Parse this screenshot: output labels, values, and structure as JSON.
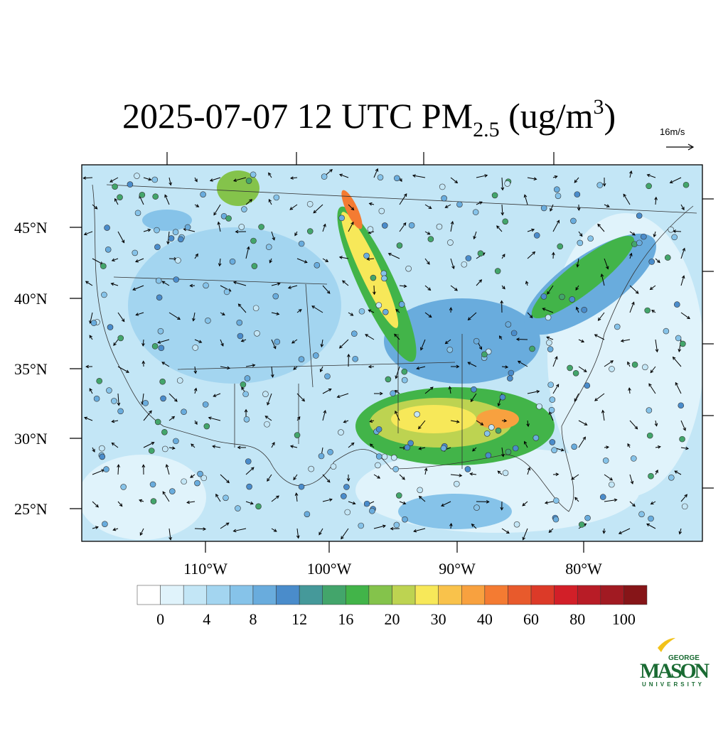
{
  "title": {
    "main": "2025-07-07 12 UTC PM",
    "sub": "2.5",
    "units": " (ug/m",
    "sup": "3",
    "close": ")"
  },
  "wind_reference": "16m/s",
  "latitude_labels": [
    "45°N",
    "40°N",
    "35°N",
    "30°N",
    "25°N"
  ],
  "longitude_labels": [
    "110°W",
    "100°W",
    "90°W",
    "80°W"
  ],
  "colorbar": {
    "colors": [
      "#ffffff",
      "#e0f3fb",
      "#c3e6f6",
      "#a3d5f0",
      "#86c3e9",
      "#69acdd",
      "#4a8ccb",
      "#45999a",
      "#43a56b",
      "#42b449",
      "#84c34b",
      "#bdd351",
      "#f7e859",
      "#f9c24b",
      "#f8a13f",
      "#f47b32",
      "#e85a2c",
      "#dc3a28",
      "#d21f28",
      "#b81c26",
      "#a11a22",
      "#861518"
    ],
    "ticks": [
      0,
      4,
      8,
      12,
      16,
      20,
      30,
      40,
      60,
      80,
      100
    ]
  },
  "logo": {
    "top": "GEORGE",
    "name": "MASON",
    "bottom": "UNIVERSITY"
  }
}
